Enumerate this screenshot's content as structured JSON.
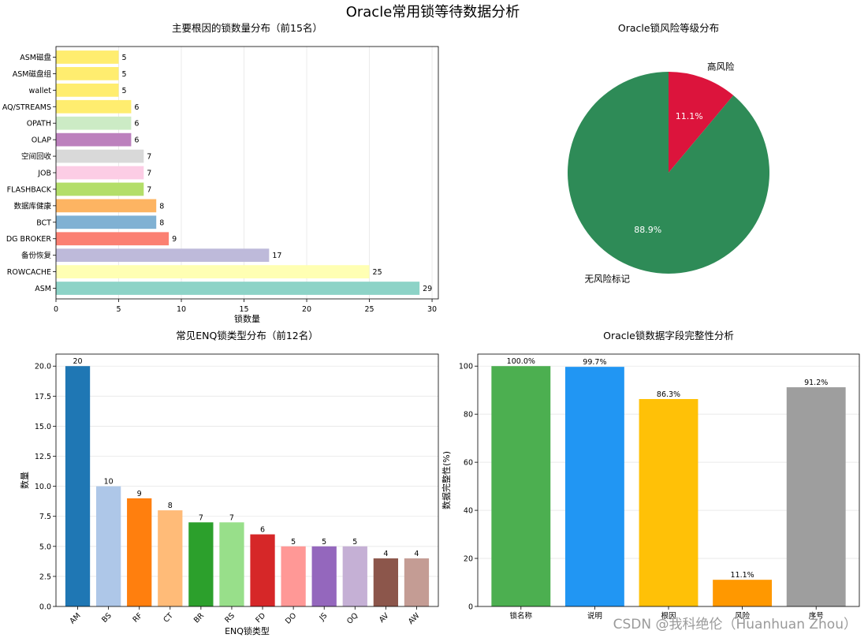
{
  "suptitle": "Oracle常用锁等待数据分析",
  "watermark": "CSDN @我科绝伦（Huanhuan Zhou）",
  "chart_data": [
    {
      "id": "root-cause",
      "type": "bar",
      "orientation": "horizontal",
      "title": "主要根因的锁数量分布（前15名）",
      "xlabel": "锁数量",
      "ylabel": "",
      "xlim": [
        0,
        30.5
      ],
      "xticks": [
        0,
        5,
        10,
        15,
        20,
        25,
        30
      ],
      "grid": "x",
      "categories": [
        "ASM",
        "ROWCACHE",
        "备份恢复",
        "DG BROKER",
        "BCT",
        "数据库健康",
        "FLASHBACK",
        "JOB",
        "空间回收",
        "OLAP",
        "OPATH",
        "AQ/STREAMS",
        "wallet",
        "ASM磁盘组",
        "ASM磁盘"
      ],
      "values": [
        29,
        25,
        17,
        9,
        8,
        8,
        7,
        7,
        7,
        6,
        6,
        6,
        5,
        5,
        5
      ],
      "colors": [
        "#8DD3C7",
        "#FFFFB3",
        "#BEBADA",
        "#FB8072",
        "#80B1D3",
        "#FDB462",
        "#B3DE69",
        "#FCCDE5",
        "#D9D9D9",
        "#BC80BD",
        "#CCEBC5",
        "#FFED6F",
        "#FFED6F",
        "#FFED6F",
        "#FFED6F"
      ]
    },
    {
      "id": "risk-level",
      "type": "pie",
      "title": "Oracle锁风险等级分布",
      "labels": [
        "高风险",
        "无风险标记"
      ],
      "values": [
        11.1,
        88.9
      ],
      "pct_labels": [
        "11.1%",
        "88.9%"
      ],
      "colors": [
        "#DC143C",
        "#2E8B57"
      ]
    },
    {
      "id": "enq-type",
      "type": "bar",
      "title": "常见ENQ锁类型分布（前12名）",
      "xlabel": "ENQ锁类型",
      "ylabel": "数量",
      "ylim": [
        0,
        21
      ],
      "yticks": [
        "0.0",
        "2.5",
        "5.0",
        "7.5",
        "10.0",
        "12.5",
        "15.0",
        "17.5",
        "20.0"
      ],
      "grid": "y",
      "categories": [
        "AM",
        "BS",
        "RF",
        "CT",
        "BR",
        "RS",
        "FD",
        "DO",
        "JS",
        "OQ",
        "AV",
        "AW"
      ],
      "values": [
        20,
        10,
        9,
        8,
        7,
        7,
        6,
        5,
        5,
        5,
        4,
        4
      ],
      "colors": [
        "#1F77B4",
        "#AEC7E8",
        "#FF7F0E",
        "#FFBB78",
        "#2CA02C",
        "#98DF8A",
        "#D62728",
        "#FF9896",
        "#9467BD",
        "#C5B0D5",
        "#8C564B",
        "#C49C94"
      ]
    },
    {
      "id": "completeness",
      "type": "bar",
      "title": "Oracle锁数据字段完整性分析",
      "xlabel": "",
      "ylabel": "数据完整性(%)",
      "ylim": [
        0,
        105
      ],
      "yticks": [
        "0",
        "20",
        "40",
        "60",
        "80",
        "100"
      ],
      "grid": "y",
      "categories": [
        "锁名称",
        "说明",
        "根因",
        "风险",
        "序号"
      ],
      "values": [
        100.0,
        99.7,
        86.3,
        11.1,
        91.2
      ],
      "value_labels": [
        "100.0%",
        "99.7%",
        "86.3%",
        "11.1%",
        "91.2%"
      ],
      "colors": [
        "#4CAF50",
        "#2196F3",
        "#FFC107",
        "#FF9800",
        "#9E9E9E"
      ]
    }
  ]
}
